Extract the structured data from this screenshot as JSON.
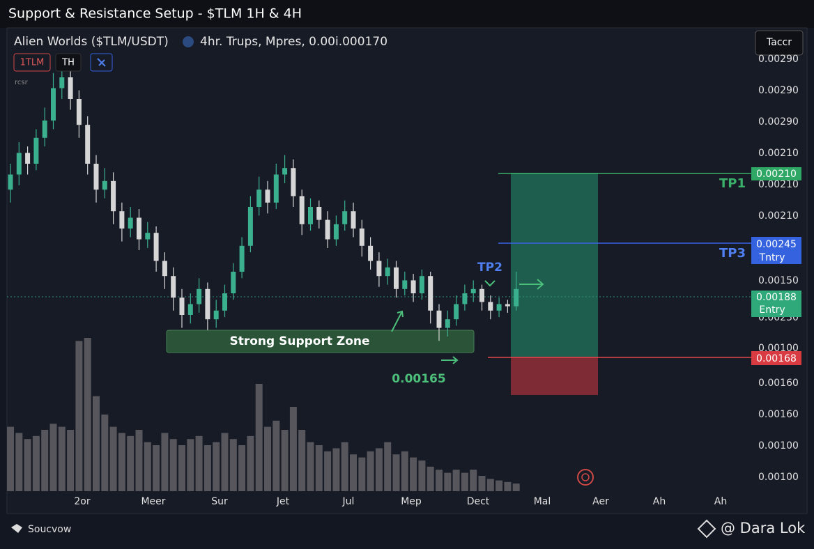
{
  "chart_data": {
    "type": "candlestick",
    "title": "Support & Resistance Setup - $TLM 1H & 4H",
    "symbol": "Alien Worlds  ($TLM/USDT)",
    "info": "4hr. Trups, Mpres, 0.00i.000170",
    "buttons": [
      "1TLM",
      "TH"
    ],
    "small_label": "rcsr",
    "menu": "Taccr",
    "up_color": "#3bb08f",
    "down_color": "#d6d6d6",
    "volume_color": "#56565c",
    "ylim": [
      0.001,
      0.003
    ],
    "vlim": [
      0,
      100
    ],
    "open": [
      0.00238,
      0.00245,
      0.00255,
      0.0025,
      0.00262,
      0.0027,
      0.00285,
      0.0029,
      0.0028,
      0.00268,
      0.0025,
      0.00238,
      0.00242,
      0.00228,
      0.0022,
      0.00225,
      0.00215,
      0.00218,
      0.00205,
      0.00198,
      0.00188,
      0.0018,
      0.00185,
      0.00192,
      0.00178,
      0.00182,
      0.0019,
      0.002,
      0.00212,
      0.0023,
      0.00238,
      0.00232,
      0.00245,
      0.00248,
      0.00235,
      0.00222,
      0.0023,
      0.00224,
      0.00215,
      0.00222,
      0.00228,
      0.0022,
      0.00212,
      0.00205,
      0.00198,
      0.00202,
      0.00192,
      0.00196,
      0.0019,
      0.00198,
      0.00182,
      0.00174,
      0.00178,
      0.00185,
      0.0019,
      0.00192,
      0.00186,
      0.00182,
      0.00185,
      0.00184
    ],
    "high": [
      0.0025,
      0.0026,
      0.00258,
      0.00266,
      0.00276,
      0.00292,
      0.00296,
      0.00294,
      0.00284,
      0.00272,
      0.00254,
      0.00248,
      0.00246,
      0.00232,
      0.0023,
      0.00229,
      0.00223,
      0.00221,
      0.00209,
      0.00202,
      0.00192,
      0.0019,
      0.00197,
      0.00195,
      0.00187,
      0.00194,
      0.00204,
      0.00216,
      0.00235,
      0.00244,
      0.00242,
      0.0025,
      0.00254,
      0.00252,
      0.00238,
      0.00234,
      0.00233,
      0.00228,
      0.00226,
      0.00233,
      0.00232,
      0.00224,
      0.00216,
      0.00209,
      0.00206,
      0.00205,
      0.002,
      0.00199,
      0.00201,
      0.002,
      0.00185,
      0.00182,
      0.00189,
      0.00194,
      0.00196,
      0.00194,
      0.00189,
      0.00188,
      0.00187,
      0.002
    ],
    "low": [
      0.00232,
      0.0024,
      0.00245,
      0.00247,
      0.00258,
      0.00266,
      0.0028,
      0.00275,
      0.00262,
      0.00245,
      0.00232,
      0.00234,
      0.00222,
      0.00214,
      0.00216,
      0.0021,
      0.00211,
      0.002,
      0.00192,
      0.00182,
      0.00174,
      0.00176,
      0.00181,
      0.00173,
      0.00174,
      0.00179,
      0.00187,
      0.00197,
      0.00209,
      0.00226,
      0.00227,
      0.00229,
      0.00241,
      0.0023,
      0.00217,
      0.00219,
      0.0022,
      0.00211,
      0.00212,
      0.00219,
      0.00216,
      0.00207,
      0.00201,
      0.00193,
      0.00194,
      0.00188,
      0.00189,
      0.00186,
      0.00187,
      0.00176,
      0.00168,
      0.0017,
      0.00175,
      0.00182,
      0.00186,
      0.00182,
      0.00178,
      0.00179,
      0.00181,
      0.00182
    ],
    "close": [
      0.00245,
      0.00255,
      0.0025,
      0.00262,
      0.0027,
      0.00285,
      0.0029,
      0.0028,
      0.00268,
      0.0025,
      0.00238,
      0.00242,
      0.00228,
      0.0022,
      0.00225,
      0.00215,
      0.00218,
      0.00205,
      0.00198,
      0.00188,
      0.0018,
      0.00185,
      0.00192,
      0.00178,
      0.00182,
      0.0019,
      0.002,
      0.00212,
      0.0023,
      0.00238,
      0.00232,
      0.00245,
      0.00248,
      0.00235,
      0.00222,
      0.0023,
      0.00224,
      0.00215,
      0.00222,
      0.00228,
      0.0022,
      0.00212,
      0.00205,
      0.00198,
      0.00202,
      0.00192,
      0.00196,
      0.0019,
      0.00198,
      0.00182,
      0.00174,
      0.00178,
      0.00185,
      0.0019,
      0.00192,
      0.00186,
      0.00182,
      0.00185,
      0.00184,
      0.00192
    ],
    "volume": [
      42,
      38,
      34,
      36,
      40,
      44,
      42,
      40,
      98,
      100,
      62,
      50,
      42,
      38,
      36,
      40,
      32,
      30,
      38,
      34,
      30,
      34,
      36,
      30,
      32,
      38,
      34,
      30,
      36,
      70,
      42,
      46,
      40,
      55,
      40,
      32,
      30,
      26,
      28,
      32,
      24,
      22,
      26,
      28,
      32,
      24,
      26,
      22,
      20,
      16,
      14,
      12,
      14,
      12,
      14,
      10,
      8,
      7,
      6,
      5
    ],
    "x_labels": [
      "2or",
      "Meer",
      "Sur",
      "Jet",
      "Jul",
      "Mep",
      "Dect",
      "Mal",
      "Aer",
      "Ah",
      "Ah"
    ],
    "price_labels": [
      "0.00290",
      "0.00290",
      "0.00290",
      "0.00210",
      "0.00210",
      "0.00210",
      "0.00150",
      "0.00230",
      "0.00100",
      "0.00160",
      "0.00160",
      "0.00100",
      "0.00100"
    ],
    "annotations": {
      "support_zone": "Strong Support Zone",
      "support_price": "0.00165",
      "tp1": "TP1",
      "tp2": "TP2",
      "tp3": "TP3"
    },
    "tags": {
      "tp1": "0.00210",
      "tp3": "0.00245",
      "tp3_text": "Tntry",
      "entry": "0.00188",
      "entry_text": "Entry",
      "stop": "0.00168"
    },
    "footer": {
      "source": "Soucvow",
      "brand": "@ Dara Lok"
    }
  }
}
